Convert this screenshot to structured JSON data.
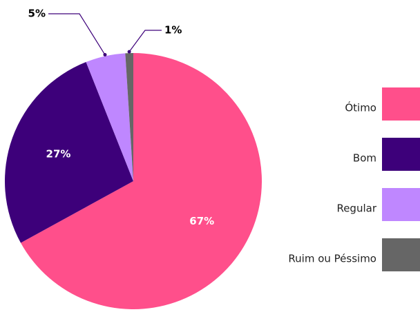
{
  "chart_data": {
    "type": "pie",
    "categories": [
      "Ótimo",
      "Bom",
      "Regular",
      "Ruim ou Péssimo"
    ],
    "values": [
      67,
      27,
      5,
      1
    ],
    "value_labels": [
      "67%",
      "27%",
      "5%",
      "1%"
    ],
    "colors": [
      "#ff4f8b",
      "#3d007a",
      "#bf87ff",
      "#666666"
    ],
    "legend": "right"
  }
}
